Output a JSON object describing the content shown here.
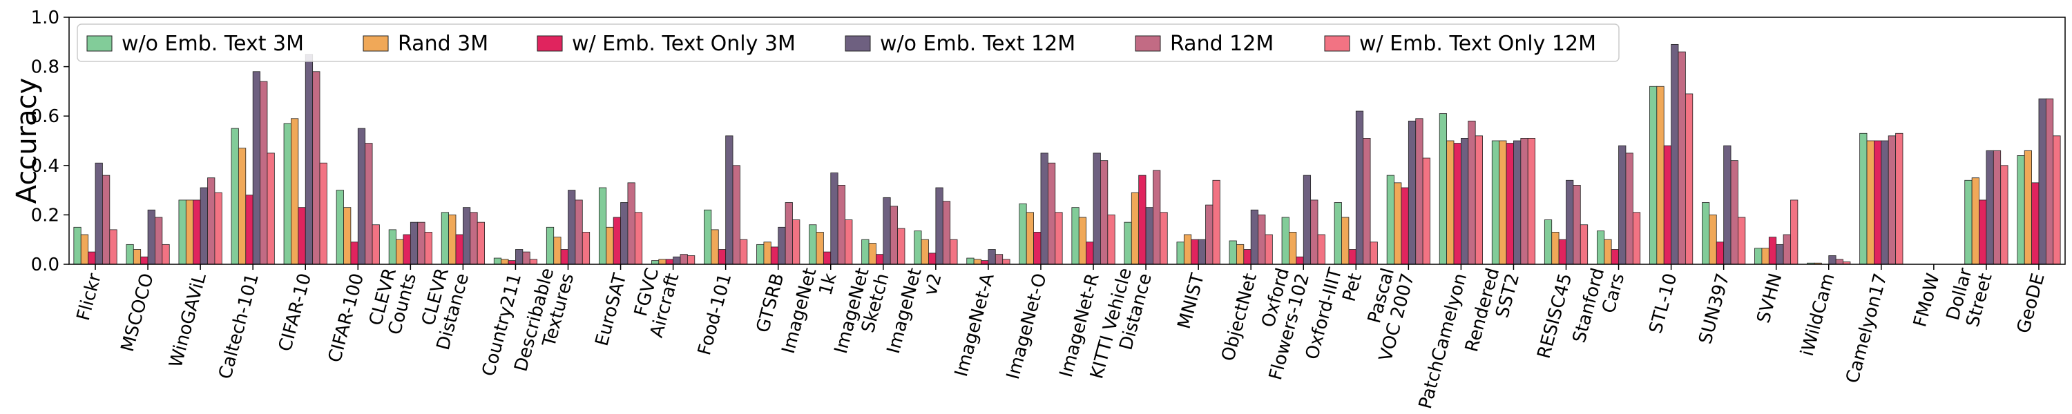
{
  "chart_data": {
    "type": "bar",
    "title": "",
    "xlabel": "",
    "ylabel": "Accuracy",
    "ylim": [
      0,
      1.0
    ],
    "yticks": [
      "0.0",
      "0.2",
      "0.4",
      "0.6",
      "0.8",
      "1.0"
    ],
    "grid": false,
    "legend_position": "top-left",
    "categories": [
      [
        "Flickr"
      ],
      [
        "MSCOCO"
      ],
      [
        "WinoGAViL"
      ],
      [
        "Caltech-101"
      ],
      [
        "CIFAR-10"
      ],
      [
        "CIFAR-100"
      ],
      [
        "CLEVR",
        "Counts"
      ],
      [
        "CLEVR",
        "Distance"
      ],
      [
        "Country211"
      ],
      [
        "Describable",
        "Textures"
      ],
      [
        "EuroSAT"
      ],
      [
        "FGVC",
        "Aircraft"
      ],
      [
        "Food-101"
      ],
      [
        "GTSRB"
      ],
      [
        "ImageNet",
        "1k"
      ],
      [
        "ImageNet",
        "Sketch"
      ],
      [
        "ImageNet",
        "v2"
      ],
      [
        "ImageNet-A"
      ],
      [
        "ImageNet-O"
      ],
      [
        "ImageNet-R"
      ],
      [
        "KITTI Vehicle",
        "Distance"
      ],
      [
        "MNIST"
      ],
      [
        "ObjectNet"
      ],
      [
        "Oxford",
        "Flowers-102"
      ],
      [
        "Oxford-IIIT",
        "Pet"
      ],
      [
        "Pascal",
        "VOC 2007"
      ],
      [
        "PatchCamelyon"
      ],
      [
        "Rendered",
        "SST2"
      ],
      [
        "RESISC45"
      ],
      [
        "Stanford",
        "Cars"
      ],
      [
        "STL-10"
      ],
      [
        "SUN397"
      ],
      [
        "SVHN"
      ],
      [
        "iWildCam"
      ],
      [
        "Camelyon17"
      ],
      [
        "FMoW"
      ],
      [
        "Dollar",
        "Street"
      ],
      [
        "GeoDE"
      ]
    ],
    "series": [
      {
        "name": "w/o Emb. Text 3M",
        "color": "#82cc99",
        "values": [
          0.15,
          0.08,
          0.26,
          0.55,
          0.57,
          0.3,
          0.14,
          0.21,
          0.025,
          0.15,
          0.31,
          0.015,
          0.22,
          0.08,
          0.16,
          0.1,
          0.135,
          0.025,
          0.245,
          0.23,
          0.17,
          0.09,
          0.095,
          0.19,
          0.25,
          0.36,
          0.61,
          0.5,
          0.18,
          0.135,
          0.72,
          0.25,
          0.065,
          0.005,
          0.53,
          0.0,
          0.34,
          0.44
        ]
      },
      {
        "name": "Rand 3M",
        "color": "#f0a858",
        "values": [
          0.12,
          0.06,
          0.26,
          0.47,
          0.59,
          0.23,
          0.1,
          0.2,
          0.02,
          0.11,
          0.15,
          0.02,
          0.14,
          0.09,
          0.13,
          0.085,
          0.1,
          0.02,
          0.21,
          0.19,
          0.29,
          0.12,
          0.08,
          0.13,
          0.19,
          0.33,
          0.5,
          0.5,
          0.13,
          0.1,
          0.72,
          0.2,
          0.065,
          0.005,
          0.5,
          0.0,
          0.35,
          0.46
        ]
      },
      {
        "name": "w/ Emb. Text Only 3M",
        "color": "#e0245e",
        "values": [
          0.05,
          0.03,
          0.26,
          0.28,
          0.23,
          0.09,
          0.12,
          0.12,
          0.015,
          0.06,
          0.19,
          0.02,
          0.06,
          0.07,
          0.05,
          0.04,
          0.045,
          0.015,
          0.13,
          0.09,
          0.36,
          0.1,
          0.06,
          0.03,
          0.06,
          0.31,
          0.49,
          0.49,
          0.1,
          0.06,
          0.48,
          0.09,
          0.11,
          0.0,
          0.5,
          0.0,
          0.26,
          0.33
        ]
      },
      {
        "name": "w/o Emb. Text 12M",
        "color": "#6e6080",
        "values": [
          0.41,
          0.22,
          0.31,
          0.78,
          0.85,
          0.55,
          0.17,
          0.23,
          0.06,
          0.3,
          0.25,
          0.03,
          0.52,
          0.15,
          0.37,
          0.27,
          0.31,
          0.06,
          0.45,
          0.45,
          0.23,
          0.1,
          0.22,
          0.36,
          0.62,
          0.58,
          0.51,
          0.5,
          0.34,
          0.48,
          0.89,
          0.48,
          0.08,
          0.035,
          0.5,
          0.0,
          0.46,
          0.67
        ]
      },
      {
        "name": "Rand 12M",
        "color": "#c26b84",
        "values": [
          0.36,
          0.19,
          0.35,
          0.74,
          0.78,
          0.49,
          0.17,
          0.21,
          0.05,
          0.26,
          0.33,
          0.04,
          0.4,
          0.25,
          0.32,
          0.235,
          0.255,
          0.04,
          0.41,
          0.42,
          0.38,
          0.24,
          0.2,
          0.26,
          0.51,
          0.59,
          0.58,
          0.51,
          0.32,
          0.45,
          0.86,
          0.42,
          0.12,
          0.02,
          0.52,
          0.0,
          0.46,
          0.67
        ]
      },
      {
        "name": "w/ Emb. Text Only 12M",
        "color": "#f27383",
        "values": [
          0.14,
          0.08,
          0.29,
          0.45,
          0.41,
          0.16,
          0.13,
          0.17,
          0.02,
          0.13,
          0.21,
          0.035,
          0.1,
          0.18,
          0.18,
          0.145,
          0.1,
          0.02,
          0.21,
          0.2,
          0.21,
          0.34,
          0.12,
          0.12,
          0.09,
          0.43,
          0.52,
          0.51,
          0.16,
          0.21,
          0.69,
          0.19,
          0.26,
          0.01,
          0.53,
          0.0,
          0.4,
          0.52
        ]
      }
    ]
  }
}
